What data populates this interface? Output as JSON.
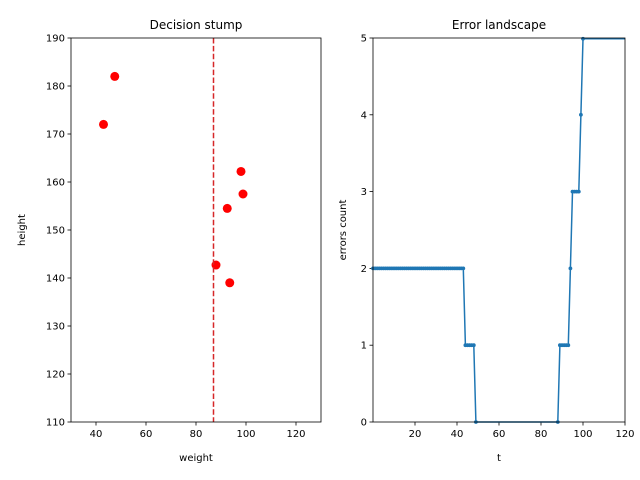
{
  "chart_data": [
    {
      "type": "scatter",
      "title": "Decision stump",
      "xlabel": "weight",
      "ylabel": "height",
      "xlim": [
        30,
        130
      ],
      "ylim": [
        110,
        190
      ],
      "xticks": [
        40,
        60,
        80,
        100,
        120
      ],
      "yticks": [
        110,
        120,
        130,
        140,
        150,
        160,
        170,
        180,
        190
      ],
      "points": [
        {
          "x": 43,
          "y": 172
        },
        {
          "x": 47.5,
          "y": 182
        },
        {
          "x": 88,
          "y": 142.7
        },
        {
          "x": 92.5,
          "y": 154.5
        },
        {
          "x": 93.5,
          "y": 139
        },
        {
          "x": 98,
          "y": 162.2
        },
        {
          "x": 98.8,
          "y": 157.5
        }
      ],
      "point_color": "#ff0000",
      "threshold": 87,
      "threshold_color": "#d62728",
      "threshold_style": "dashed",
      "grid": false
    },
    {
      "type": "line",
      "title": "Error landscape",
      "xlabel": "t",
      "ylabel": "errors count",
      "xlim": [
        0,
        120
      ],
      "ylim": [
        0,
        5
      ],
      "xticks": [
        20,
        40,
        60,
        80,
        100,
        120
      ],
      "yticks": [
        0,
        1,
        2,
        3,
        4,
        5
      ],
      "color": "#1f77b4",
      "grid": false,
      "series": [
        {
          "points": [
            {
              "x": 0,
              "y": 2
            },
            {
              "x": 1,
              "y": 2
            },
            {
              "x": 2,
              "y": 2
            },
            {
              "x": 3,
              "y": 2
            },
            {
              "x": 4,
              "y": 2
            },
            {
              "x": 5,
              "y": 2
            },
            {
              "x": 6,
              "y": 2
            },
            {
              "x": 7,
              "y": 2
            },
            {
              "x": 8,
              "y": 2
            },
            {
              "x": 9,
              "y": 2
            },
            {
              "x": 10,
              "y": 2
            },
            {
              "x": 11,
              "y": 2
            },
            {
              "x": 12,
              "y": 2
            },
            {
              "x": 13,
              "y": 2
            },
            {
              "x": 14,
              "y": 2
            },
            {
              "x": 15,
              "y": 2
            },
            {
              "x": 16,
              "y": 2
            },
            {
              "x": 17,
              "y": 2
            },
            {
              "x": 18,
              "y": 2
            },
            {
              "x": 19,
              "y": 2
            },
            {
              "x": 20,
              "y": 2
            },
            {
              "x": 21,
              "y": 2
            },
            {
              "x": 22,
              "y": 2
            },
            {
              "x": 23,
              "y": 2
            },
            {
              "x": 24,
              "y": 2
            },
            {
              "x": 25,
              "y": 2
            },
            {
              "x": 26,
              "y": 2
            },
            {
              "x": 27,
              "y": 2
            },
            {
              "x": 28,
              "y": 2
            },
            {
              "x": 29,
              "y": 2
            },
            {
              "x": 30,
              "y": 2
            },
            {
              "x": 31,
              "y": 2
            },
            {
              "x": 32,
              "y": 2
            },
            {
              "x": 33,
              "y": 2
            },
            {
              "x": 34,
              "y": 2
            },
            {
              "x": 35,
              "y": 2
            },
            {
              "x": 36,
              "y": 2
            },
            {
              "x": 37,
              "y": 2
            },
            {
              "x": 38,
              "y": 2
            },
            {
              "x": 39,
              "y": 2
            },
            {
              "x": 40,
              "y": 2
            },
            {
              "x": 41,
              "y": 2
            },
            {
              "x": 42,
              "y": 2
            },
            {
              "x": 43,
              "y": 2
            },
            {
              "x": 44,
              "y": 1
            },
            {
              "x": 45,
              "y": 1
            },
            {
              "x": 46,
              "y": 1
            },
            {
              "x": 47,
              "y": 1
            },
            {
              "x": 48,
              "y": 1
            },
            {
              "x": 49,
              "y": 0
            },
            {
              "x": 88,
              "y": 0
            },
            {
              "x": 89,
              "y": 1
            },
            {
              "x": 90,
              "y": 1
            },
            {
              "x": 91,
              "y": 1
            },
            {
              "x": 92,
              "y": 1
            },
            {
              "x": 93,
              "y": 1
            },
            {
              "x": 94,
              "y": 2
            },
            {
              "x": 95,
              "y": 3
            },
            {
              "x": 96,
              "y": 3
            },
            {
              "x": 97,
              "y": 3
            },
            {
              "x": 98,
              "y": 3
            },
            {
              "x": 99,
              "y": 4
            },
            {
              "x": 100,
              "y": 5
            },
            {
              "x": 120,
              "y": 5
            }
          ],
          "marked_x": [
            0,
            1,
            2,
            3,
            4,
            5,
            6,
            7,
            8,
            9,
            10,
            11,
            12,
            13,
            14,
            15,
            16,
            17,
            18,
            19,
            20,
            21,
            22,
            23,
            24,
            25,
            26,
            27,
            28,
            29,
            30,
            31,
            32,
            33,
            34,
            35,
            36,
            37,
            38,
            39,
            40,
            41,
            42,
            43,
            44,
            45,
            46,
            47,
            48,
            49,
            88,
            89,
            90,
            91,
            92,
            93,
            94,
            95,
            96,
            97,
            98,
            99,
            100
          ]
        }
      ]
    }
  ]
}
